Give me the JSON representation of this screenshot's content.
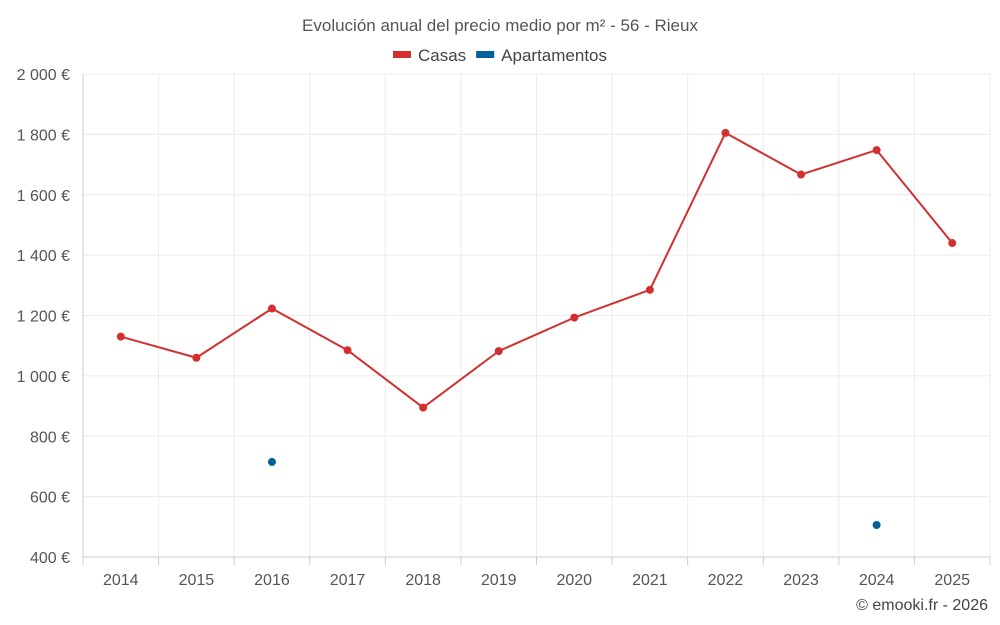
{
  "chart_data": {
    "type": "line",
    "title": "Evolución anual del precio medio por m² - 56 - Rieux",
    "categories": [
      "2014",
      "2015",
      "2016",
      "2017",
      "2018",
      "2019",
      "2020",
      "2021",
      "2022",
      "2023",
      "2024",
      "2025"
    ],
    "ylim": [
      400,
      2000
    ],
    "yticks": [
      400,
      600,
      800,
      1000,
      1200,
      1400,
      1600,
      1800,
      2000
    ],
    "ytick_labels": [
      "400 €",
      "600 €",
      "800 €",
      "1 000 €",
      "1 200 €",
      "1 400 €",
      "1 600 €",
      "1 800 €",
      "2 000 €"
    ],
    "series": [
      {
        "name": "Casas",
        "color": "#d32f2f",
        "values": [
          1130,
          1060,
          1223,
          1085,
          895,
          1082,
          1193,
          1285,
          1805,
          1667,
          1748,
          1440
        ]
      },
      {
        "name": "Apartamentos",
        "color": "#036199",
        "values": [
          null,
          null,
          715,
          null,
          null,
          null,
          null,
          null,
          null,
          null,
          506,
          null
        ]
      }
    ],
    "legend_position": "top-center",
    "grid": true
  },
  "credit": "© emooki.fr - 2026"
}
